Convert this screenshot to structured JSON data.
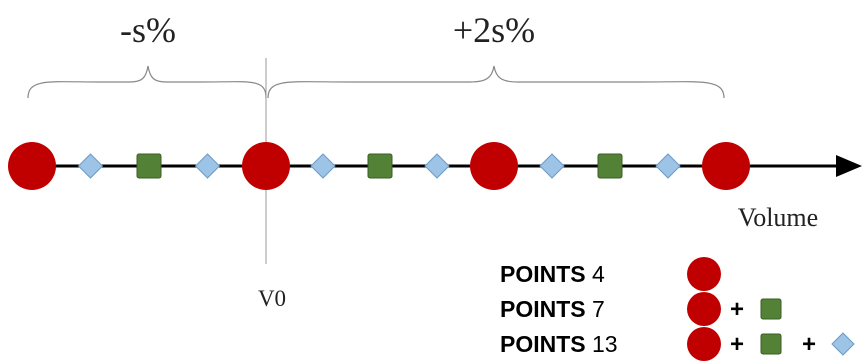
{
  "diagram": {
    "left_span_label": "-s%",
    "right_span_label": "+2s%",
    "axis_label": "Volume",
    "reference_label": "V0",
    "colors": {
      "circle": "#c00000",
      "square": "#538135",
      "diamond": "#9dc3e6",
      "axis": "#000000",
      "brace": "#888888",
      "reference_line": "#999999"
    }
  },
  "legend": [
    {
      "keyword": "POINTS",
      "count": "4",
      "icons": [
        "circle"
      ]
    },
    {
      "keyword": "POINTS",
      "count": "7",
      "icons": [
        "circle",
        "plus",
        "square"
      ]
    },
    {
      "keyword": "POINTS",
      "count": "13",
      "icons": [
        "circle",
        "plus",
        "square",
        "plus",
        "diamond"
      ]
    }
  ]
}
